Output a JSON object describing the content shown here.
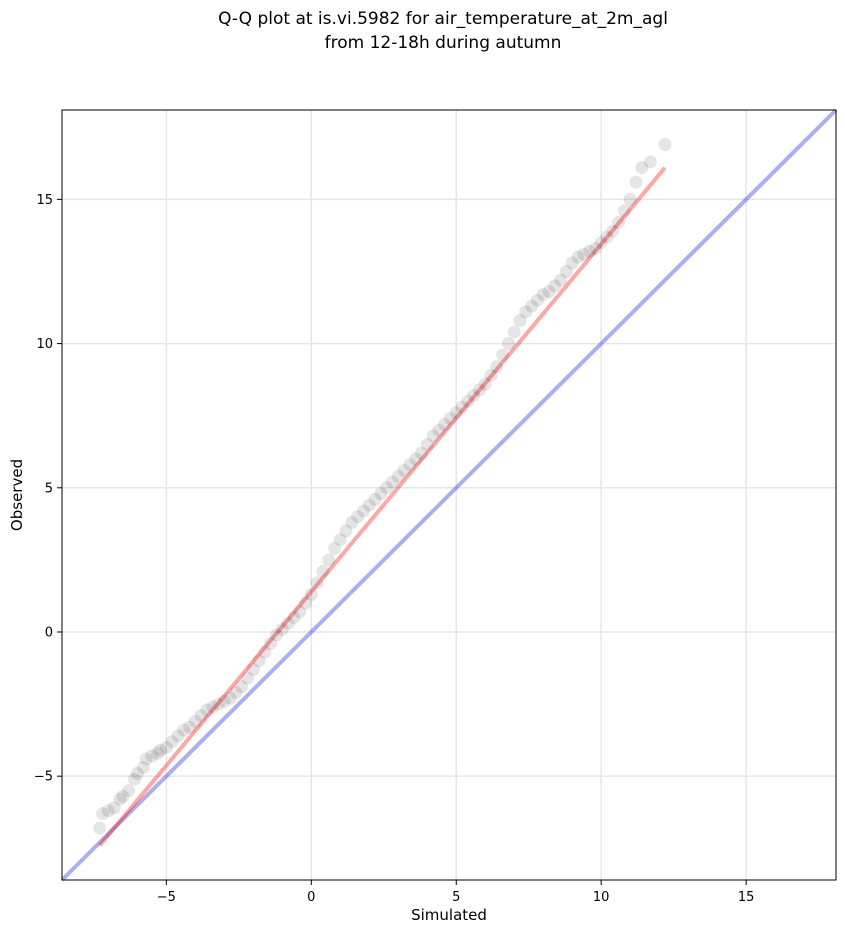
{
  "figure": {
    "title_line1": "Q-Q plot at is.vi.5982 for air_temperature_at_2m_agl",
    "title_line2": "from 12-18h during autumn"
  },
  "chart_data": {
    "type": "scatter",
    "title": "Q-Q plot at is.vi.5982 for air_temperature_at_2m_agl\nfrom 12-18h during autumn",
    "xlabel": "Simulated",
    "ylabel": "Observed",
    "xlim": [
      -8.6,
      18.1
    ],
    "ylim": [
      -8.6,
      18.1
    ],
    "xticks": [
      -5,
      0,
      5,
      10,
      15
    ],
    "yticks": [
      -5,
      0,
      5,
      10,
      15
    ],
    "xtick_labels": [
      "−5",
      "0",
      "5",
      "10",
      "15"
    ],
    "ytick_labels": [
      "−5",
      "0",
      "5",
      "10",
      "15"
    ],
    "grid": true,
    "colors": {
      "points": "#000000",
      "fit_line": "#ff0000",
      "identity_line": "#0000dd"
    },
    "series": [
      {
        "kind": "quantile_points",
        "x": [
          -7.3,
          -7.2,
          -7.0,
          -6.8,
          -6.6,
          -6.5,
          -6.3,
          -6.1,
          -6.0,
          -5.8,
          -5.7,
          -5.5,
          -5.3,
          -5.2,
          -5.0,
          -4.8,
          -4.6,
          -4.4,
          -4.2,
          -4.0,
          -3.8,
          -3.6,
          -3.4,
          -3.2,
          -3.0,
          -2.8,
          -2.6,
          -2.4,
          -2.2,
          -2.0,
          -1.8,
          -1.6,
          -1.4,
          -1.2,
          -1.0,
          -0.8,
          -0.6,
          -0.4,
          -0.2,
          0.0,
          0.2,
          0.4,
          0.6,
          0.8,
          1.0,
          1.2,
          1.4,
          1.6,
          1.8,
          2.0,
          2.2,
          2.4,
          2.6,
          2.8,
          3.0,
          3.2,
          3.4,
          3.6,
          3.8,
          4.0,
          4.2,
          4.4,
          4.6,
          4.8,
          5.0,
          5.2,
          5.4,
          5.6,
          5.8,
          6.0,
          6.2,
          6.4,
          6.6,
          6.8,
          7.0,
          7.2,
          7.4,
          7.6,
          7.8,
          8.0,
          8.2,
          8.4,
          8.6,
          8.8,
          9.0,
          9.2,
          9.4,
          9.6,
          9.8,
          10.0,
          10.2,
          10.4,
          10.6,
          10.8,
          11.0,
          11.2,
          11.4,
          11.7,
          12.2
        ],
        "y": [
          -6.8,
          -6.3,
          -6.2,
          -6.1,
          -5.8,
          -5.7,
          -5.5,
          -5.1,
          -4.9,
          -4.7,
          -4.4,
          -4.3,
          -4.2,
          -4.1,
          -4.0,
          -3.8,
          -3.6,
          -3.4,
          -3.3,
          -3.1,
          -2.9,
          -2.7,
          -2.6,
          -2.5,
          -2.4,
          -2.3,
          -2.1,
          -1.9,
          -1.6,
          -1.3,
          -1.0,
          -0.7,
          -0.4,
          -0.1,
          0.1,
          0.3,
          0.5,
          0.7,
          1.0,
          1.3,
          1.7,
          2.1,
          2.5,
          2.9,
          3.2,
          3.5,
          3.8,
          4.0,
          4.2,
          4.4,
          4.6,
          4.8,
          5.0,
          5.2,
          5.4,
          5.6,
          5.8,
          6.0,
          6.2,
          6.5,
          6.8,
          7.0,
          7.2,
          7.4,
          7.6,
          7.8,
          8.0,
          8.2,
          8.4,
          8.6,
          8.9,
          9.2,
          9.6,
          10.0,
          10.4,
          10.8,
          11.1,
          11.3,
          11.5,
          11.7,
          11.8,
          12.0,
          12.2,
          12.5,
          12.8,
          13.0,
          13.1,
          13.2,
          13.3,
          13.5,
          13.7,
          13.9,
          14.2,
          14.6,
          15.0,
          15.6,
          16.1,
          16.3,
          16.9
        ]
      },
      {
        "kind": "fit_line",
        "x": [
          -7.3,
          12.2
        ],
        "y": [
          -7.4,
          16.1
        ]
      },
      {
        "kind": "identity_line",
        "x": [
          -8.6,
          18.1
        ],
        "y": [
          -8.6,
          18.1
        ]
      }
    ]
  }
}
